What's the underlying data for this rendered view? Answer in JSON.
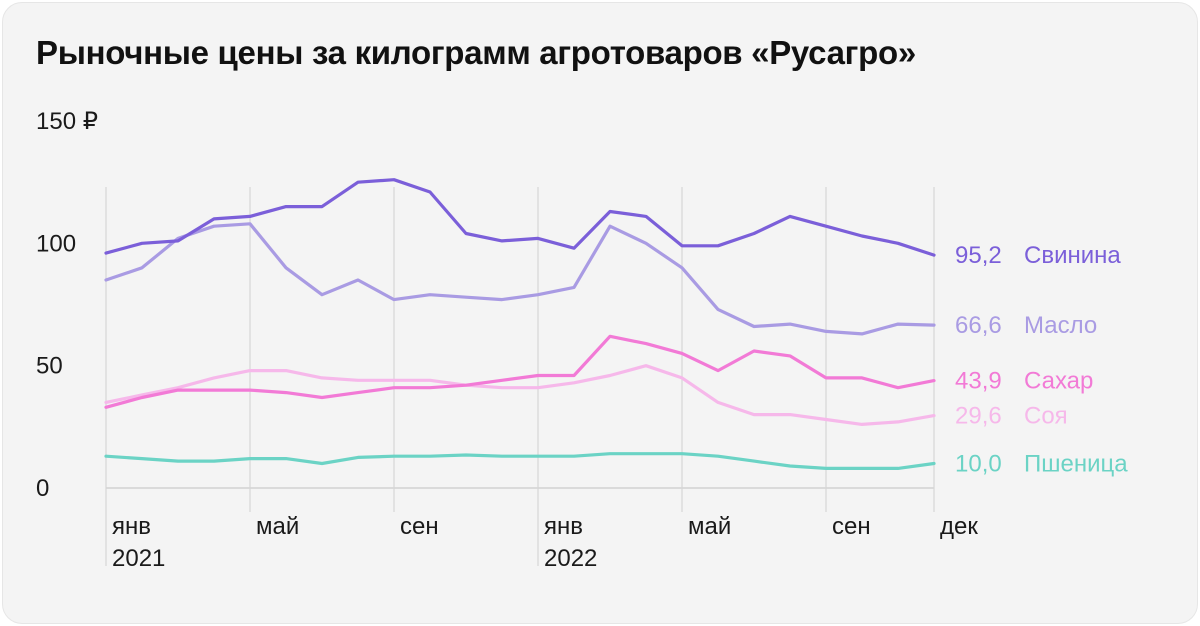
{
  "title": "Рыночные цены за килограмм агротоваров «Русагро»",
  "chart_data": {
    "type": "line",
    "title": "Рыночные цены за килограмм агротоваров «Русагро»",
    "ylim": [
      0,
      150
    ],
    "y_ticks": [
      {
        "value": 150,
        "label": "150 ₽"
      },
      {
        "value": 100,
        "label": "100"
      },
      {
        "value": 50,
        "label": "50"
      },
      {
        "value": 0,
        "label": "0"
      }
    ],
    "x": [
      "2021-01",
      "2021-02",
      "2021-03",
      "2021-04",
      "2021-05",
      "2021-06",
      "2021-07",
      "2021-08",
      "2021-09",
      "2021-10",
      "2021-11",
      "2021-12",
      "2022-01",
      "2022-02",
      "2022-03",
      "2022-04",
      "2022-05",
      "2022-06",
      "2022-07",
      "2022-08",
      "2022-09",
      "2022-10",
      "2022-11",
      "2022-12"
    ],
    "x_ticks": [
      {
        "index": 0,
        "label": "янв",
        "year": "2021"
      },
      {
        "index": 4,
        "label": "май"
      },
      {
        "index": 8,
        "label": "сен"
      },
      {
        "index": 12,
        "label": "янв",
        "year": "2022"
      },
      {
        "index": 16,
        "label": "май"
      },
      {
        "index": 20,
        "label": "сен"
      },
      {
        "index": 23,
        "label": "дек"
      }
    ],
    "vertical_grid": true,
    "series": [
      {
        "name": "Свинина",
        "end_label": "95,2",
        "color": "#7b5fd9",
        "values": [
          96,
          100,
          101,
          110,
          111,
          115,
          115,
          125,
          126,
          121,
          104,
          101,
          102,
          98,
          113,
          111,
          99,
          99,
          104,
          111,
          107,
          103,
          100,
          95.2
        ]
      },
      {
        "name": "Масло",
        "end_label": "66,6",
        "color": "#a99be3",
        "values": [
          85,
          90,
          102,
          107,
          108,
          90,
          79,
          85,
          77,
          79,
          78,
          77,
          79,
          82,
          107,
          100,
          90,
          73,
          66,
          67,
          64,
          63,
          67,
          66.6
        ]
      },
      {
        "name": "Сахар",
        "end_label": "43,9",
        "color": "#f27ad6",
        "values": [
          33,
          37,
          40,
          40,
          40,
          39,
          37,
          39,
          41,
          41,
          42,
          44,
          46,
          46,
          62,
          59,
          55,
          48,
          56,
          54,
          45,
          45,
          41,
          43.9
        ]
      },
      {
        "name": "Соя",
        "end_label": "29,6",
        "color": "#f6b8ea",
        "values": [
          35,
          38,
          41,
          45,
          48,
          48,
          45,
          44,
          44,
          44,
          42,
          41,
          41,
          43,
          46,
          50,
          45,
          35,
          30,
          30,
          28,
          26,
          27,
          29.6
        ]
      },
      {
        "name": "Пшеница",
        "end_label": "10,0",
        "color": "#6bd3c5",
        "values": [
          13,
          12,
          11,
          11,
          12,
          12,
          10,
          12.5,
          13,
          13,
          13.5,
          13,
          13,
          13,
          14,
          14,
          14,
          13,
          11,
          9,
          8,
          8,
          8,
          10.0
        ]
      }
    ]
  }
}
